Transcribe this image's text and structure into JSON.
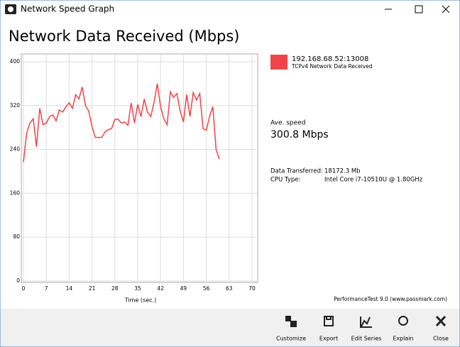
{
  "window": {
    "title": "Network Speed Graph"
  },
  "chart_data": {
    "type": "line",
    "title": "Network Data Received (Mbps)",
    "x_label": "Time (sec.)",
    "x": [
      0,
      1,
      2,
      3,
      4,
      5,
      6,
      7,
      8,
      9,
      10,
      11,
      12,
      13,
      14,
      15,
      16,
      17,
      18,
      19,
      20,
      21,
      22,
      23,
      24,
      25,
      26,
      27,
      28,
      29,
      30,
      31,
      32,
      33,
      34,
      35,
      36,
      37,
      38,
      39,
      40,
      41,
      42,
      43,
      44,
      45,
      46,
      47,
      48,
      49,
      50,
      51,
      52,
      53,
      54,
      55,
      56,
      57,
      58,
      59,
      60
    ],
    "series": [
      {
        "name": "192.168.68.52:13008",
        "subtitle": "TCPv4 Network Data Received",
        "color": "#f0444a",
        "values": [
          217,
          270,
          288,
          296,
          245,
          315,
          285,
          288,
          300,
          303,
          292,
          312,
          308,
          318,
          325,
          315,
          340,
          332,
          354,
          320,
          310,
          282,
          262,
          262,
          262,
          272,
          276,
          278,
          295,
          295,
          288,
          290,
          284,
          325,
          288,
          322,
          300,
          332,
          308,
          300,
          326,
          360,
          318,
          296,
          285,
          345,
          335,
          342,
          310,
          290,
          340,
          300,
          344,
          330,
          342,
          278,
          275,
          300,
          318,
          240,
          222
        ]
      }
    ],
    "xlim": [
      0,
      70
    ],
    "ylim": [
      0,
      400
    ],
    "xticks": [
      0,
      7,
      14,
      21,
      28,
      35,
      42,
      49,
      56,
      63,
      70
    ],
    "yticks": [
      0,
      80,
      160,
      240,
      320,
      400
    ],
    "grid": true
  },
  "stats": {
    "ave_label": "Ave. speed",
    "ave_value": "300.8 Mbps",
    "rows": [
      [
        "Data Transferred:",
        "18172.3 Mb"
      ],
      [
        "CPU Type:",
        "Intel Core i7-10510U @ 1.80GHz"
      ]
    ]
  },
  "footer": "PerformanceTest 9.0 (www.passmark.com)",
  "toolbar": [
    "Customize",
    "Export",
    "Edit Series",
    "Explain",
    "Close"
  ]
}
